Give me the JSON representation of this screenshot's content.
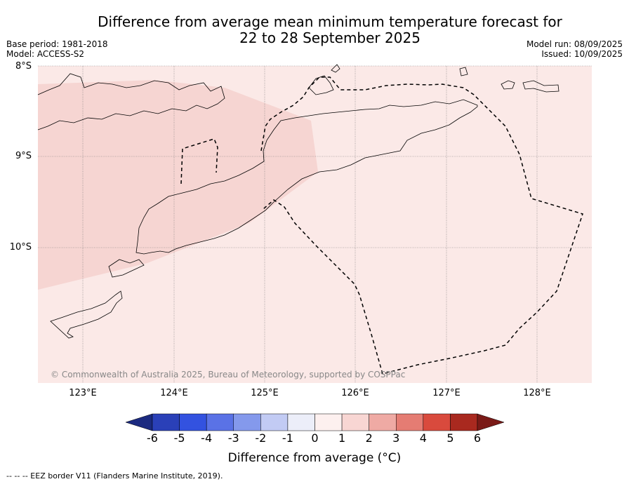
{
  "header": {
    "title_line1": "Difference from average mean minimum temperature forecast for",
    "title_line2": "22 to 28 September 2025",
    "base_period": "Base period: 1981-2018",
    "model": "Model: ACCESS-S2",
    "model_run": "Model run: 08/09/2025",
    "issued": "Issued: 10/09/2025"
  },
  "map": {
    "lat_labels": [
      "8°S",
      "9°S",
      "10°S"
    ],
    "lon_labels": [
      "123°E",
      "124°E",
      "125°E",
      "126°E",
      "127°E",
      "128°E"
    ],
    "copyright": "© Commonwealth of Australia 2025, Bureau of Meteorology, supported by COSPPac",
    "colors": {
      "ocean_fill": "#fbe9e7",
      "warm_fill": "#f6d5d2",
      "eez_line": "#000000"
    }
  },
  "colorbar": {
    "ticks": [
      "-6",
      "-5",
      "-4",
      "-3",
      "-2",
      "-1",
      "0",
      "1",
      "2",
      "3",
      "4",
      "5",
      "6"
    ],
    "colors": [
      "#1b2a80",
      "#2a40b8",
      "#3352e0",
      "#5a72e6",
      "#8499ec",
      "#c2cbf4",
      "#eceef9",
      "#fdf0ef",
      "#f8d6d3",
      "#efaaa4",
      "#e57c73",
      "#d94a3d",
      "#a9291f",
      "#7a1a17"
    ],
    "label": "Difference from average (°C)"
  },
  "footnote": "--  --  -- EEZ border V11 (Flanders Marine Institute, 2019)."
}
